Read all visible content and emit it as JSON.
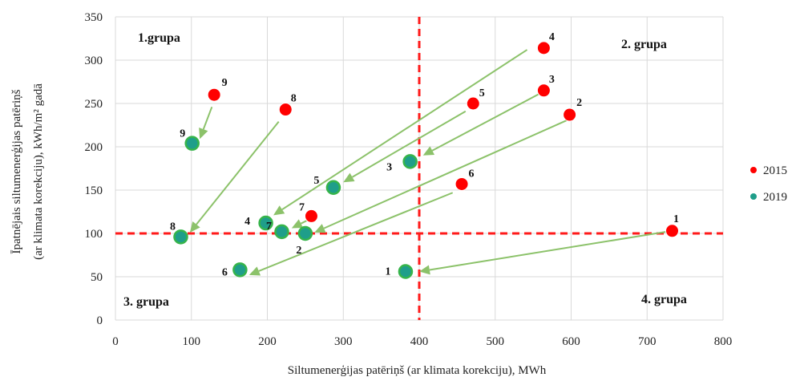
{
  "chart_data": {
    "type": "scatter",
    "xlabel": "Siltumenerģijas patēriņš (ar klimata korekciju), MWh",
    "ylabel_line1": "Īpatnējais siltumenerģijas patēriņš",
    "ylabel_line2": "(ar klimata korekciju), kWh/m² gadā",
    "xlim": [
      0,
      800
    ],
    "ylim": [
      0,
      350
    ],
    "x_ticks": [
      "0",
      "100",
      "200",
      "300",
      "400",
      "500",
      "600",
      "700",
      "800"
    ],
    "y_ticks": [
      "0",
      "50",
      "100",
      "150",
      "200",
      "250",
      "300",
      "350"
    ],
    "grid": true,
    "legend_position": "right",
    "thresholds": {
      "x": 400,
      "y": 100
    },
    "group_labels": [
      "1.grupa",
      "2. grupa",
      "3. grupa",
      "4. grupa"
    ],
    "series": [
      {
        "name": "2015",
        "color": "#ff0000",
        "points": [
          {
            "label": "1",
            "x": 733,
            "y": 103
          },
          {
            "label": "2",
            "x": 598,
            "y": 237
          },
          {
            "label": "3",
            "x": 564,
            "y": 265
          },
          {
            "label": "4",
            "x": 564,
            "y": 314
          },
          {
            "label": "5",
            "x": 471,
            "y": 250
          },
          {
            "label": "6",
            "x": 456,
            "y": 157
          },
          {
            "label": "7",
            "x": 258,
            "y": 120
          },
          {
            "label": "8",
            "x": 224,
            "y": 243
          },
          {
            "label": "9",
            "x": 130,
            "y": 260
          }
        ]
      },
      {
        "name": "2019",
        "color": "#1f9e8a",
        "points": [
          {
            "label": "1",
            "x": 382,
            "y": 56
          },
          {
            "label": "2",
            "x": 250,
            "y": 100
          },
          {
            "label": "3",
            "x": 388,
            "y": 183
          },
          {
            "label": "4",
            "x": 198,
            "y": 112
          },
          {
            "label": "5",
            "x": 287,
            "y": 153
          },
          {
            "label": "6",
            "x": 164,
            "y": 58
          },
          {
            "label": "7",
            "x": 219,
            "y": 102
          },
          {
            "label": "8",
            "x": 86,
            "y": 96
          },
          {
            "label": "9",
            "x": 101,
            "y": 204
          }
        ]
      }
    ],
    "arrow_color": "#8cc26a",
    "arrows": [
      {
        "label": "1",
        "from": [
          733,
          103
        ],
        "to": [
          400,
          56
        ]
      },
      {
        "label": "2",
        "from": [
          598,
          232
        ],
        "to": [
          262,
          101
        ]
      },
      {
        "label": "3",
        "from": [
          560,
          262
        ],
        "to": [
          405,
          190
        ]
      },
      {
        "label": "4",
        "from": [
          542,
          312
        ],
        "to": [
          208,
          121
        ]
      },
      {
        "label": "5",
        "from": [
          461,
          241
        ],
        "to": [
          300,
          159
        ]
      },
      {
        "label": "6",
        "from": [
          444,
          147
        ],
        "to": [
          176,
          52
        ]
      },
      {
        "label": "7",
        "from": [
          257,
          117
        ],
        "to": [
          232,
          106
        ]
      },
      {
        "label": "8",
        "from": [
          215,
          229
        ],
        "to": [
          98,
          101
        ]
      },
      {
        "label": "9",
        "from": [
          127,
          246
        ],
        "to": [
          111,
          209
        ]
      }
    ]
  }
}
